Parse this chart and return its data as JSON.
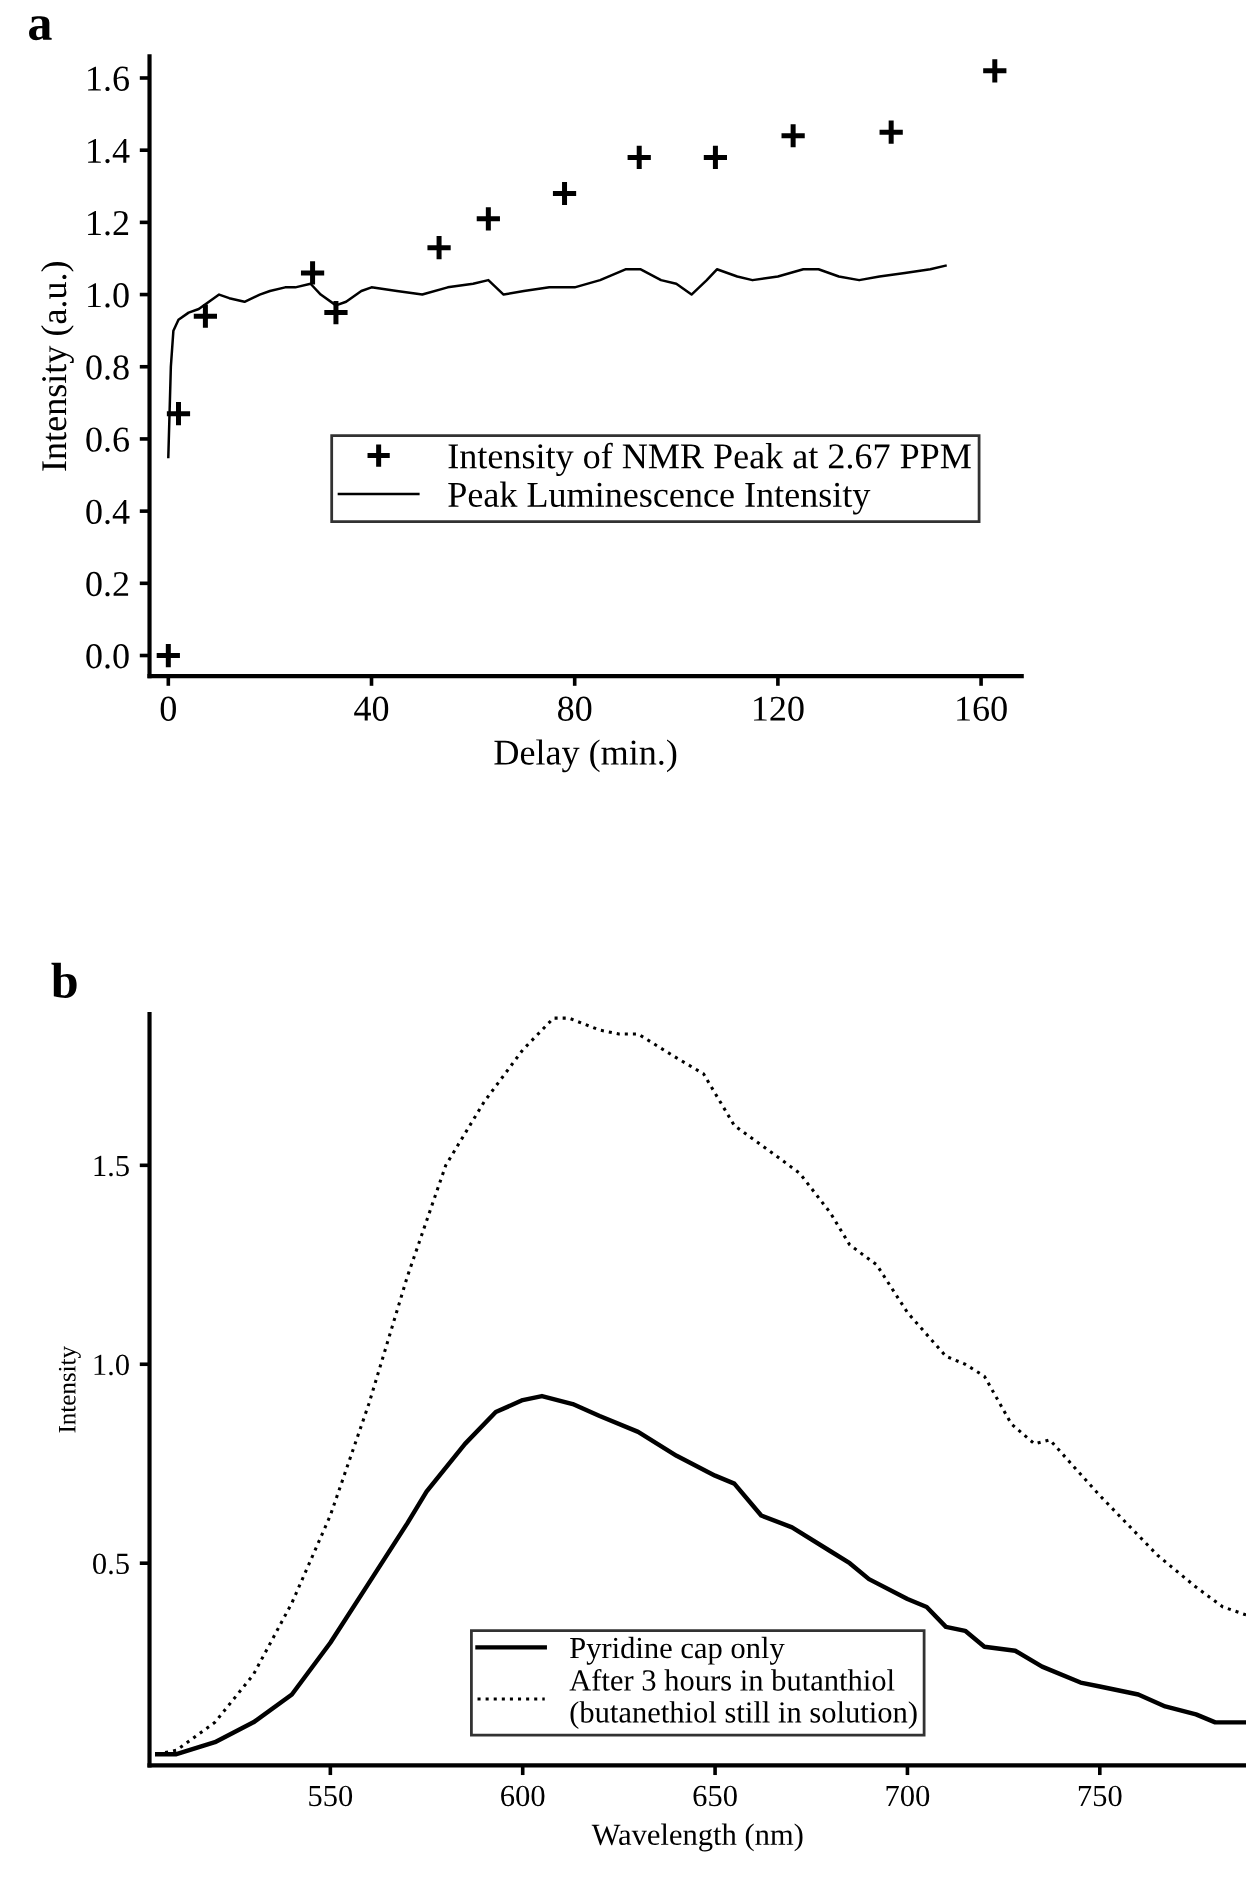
{
  "chart_data": [
    {
      "type": "scatter",
      "title": "a",
      "xlabel": "Delay (min.)",
      "ylabel": "Intensity (a.u.)",
      "xlim": [
        -3.7,
        168
      ],
      "ylim": [
        -0.057,
        1.66
      ],
      "xticks": [
        0,
        40,
        80,
        120,
        160
      ],
      "yticks": [
        {
          "value": 0,
          "label": "0.0"
        },
        {
          "value": 0.2,
          "label": "0.2"
        },
        {
          "value": 0.4,
          "label": "0.4"
        },
        {
          "value": 0.6,
          "label": "0.6"
        },
        {
          "value": 0.8,
          "label": "0.8"
        },
        {
          "value": 1.0,
          "label": "1.0"
        },
        {
          "value": 1.2,
          "label": "1.2"
        },
        {
          "value": 1.4,
          "label": "1.4"
        },
        {
          "value": 1.6,
          "label": "1.6"
        }
      ],
      "legend": "bottom",
      "grid": false,
      "series": [
        {
          "name": "Intensity of NMR Peak at 2.67 PPM",
          "type": "scatter",
          "marker": "cross",
          "color": "#000000",
          "x": [
            0,
            2,
            7.3,
            28.4,
            33,
            53.3,
            63,
            78,
            92.7,
            107.7,
            123,
            142.3,
            162.7
          ],
          "values": [
            0,
            0.67,
            0.94,
            1.06,
            0.95,
            1.13,
            1.21,
            1.28,
            1.38,
            1.38,
            1.44,
            1.45,
            1.62
          ]
        },
        {
          "name": "Peak Luminescence Intensity",
          "type": "line",
          "line_style": "solid",
          "color": "#000000",
          "x": [
            0,
            0.5,
            1,
            2,
            4,
            6,
            8,
            10,
            12,
            15,
            18,
            20,
            23,
            25,
            28,
            30,
            33,
            35,
            38,
            40,
            45,
            50,
            55,
            60,
            63,
            66,
            70,
            75,
            80,
            85,
            90,
            93,
            97,
            100,
            103,
            106,
            108,
            112,
            115,
            120,
            125,
            128,
            132,
            136,
            140,
            145,
            150,
            153
          ],
          "values": [
            0.55,
            0.8,
            0.9,
            0.93,
            0.95,
            0.96,
            0.98,
            1.0,
            0.99,
            0.98,
            1.0,
            1.01,
            1.02,
            1.02,
            1.03,
            1.0,
            0.97,
            0.98,
            1.01,
            1.02,
            1.01,
            1.0,
            1.02,
            1.03,
            1.04,
            1.0,
            1.01,
            1.02,
            1.02,
            1.04,
            1.07,
            1.07,
            1.04,
            1.03,
            1.0,
            1.04,
            1.07,
            1.05,
            1.04,
            1.05,
            1.07,
            1.07,
            1.05,
            1.04,
            1.05,
            1.06,
            1.07,
            1.08
          ]
        }
      ]
    },
    {
      "type": "line",
      "title": "b",
      "xlabel": "Wavelength (nm)",
      "ylabel": "Intensity",
      "xlim": [
        503,
        788
      ],
      "ylim": [
        -0.008,
        1.88
      ],
      "xticks": [
        550,
        600,
        650,
        700,
        750
      ],
      "yticks": [
        {
          "value": 0.5,
          "label": "0.5"
        },
        {
          "value": 1.0,
          "label": "1.0"
        },
        {
          "value": 1.5,
          "label": "1.5"
        }
      ],
      "legend": "bottom",
      "grid": false,
      "series": [
        {
          "name": "Pyridine cap only",
          "line_style": "solid",
          "color": "#000000",
          "x": [
            505,
            510,
            520,
            530,
            540,
            550,
            560,
            570,
            575,
            585,
            593,
            600,
            605,
            613,
            620,
            630,
            640,
            650,
            655,
            662,
            670,
            680,
            685,
            690,
            700,
            705,
            710,
            715,
            720,
            728,
            735,
            745,
            750,
            760,
            767,
            775,
            780,
            788
          ],
          "values": [
            0.02,
            0.02,
            0.05,
            0.1,
            0.17,
            0.3,
            0.45,
            0.6,
            0.68,
            0.8,
            0.88,
            0.91,
            0.92,
            0.9,
            0.87,
            0.83,
            0.77,
            0.72,
            0.7,
            0.62,
            0.59,
            0.53,
            0.5,
            0.46,
            0.41,
            0.39,
            0.34,
            0.33,
            0.29,
            0.28,
            0.24,
            0.2,
            0.19,
            0.17,
            0.14,
            0.12,
            0.1,
            0.1
          ]
        },
        {
          "name": "After 3 hours in butanthiol\n(butanethiol still in solution)",
          "line_style": "dotted",
          "color": "#000000",
          "x": [
            505,
            510,
            520,
            530,
            540,
            550,
            560,
            570,
            580,
            590,
            600,
            608,
            612,
            620,
            625,
            630,
            640,
            647,
            655,
            665,
            672,
            680,
            685,
            692,
            700,
            710,
            715,
            720,
            727,
            733,
            737,
            750,
            755,
            765,
            775,
            782,
            788
          ],
          "values": [
            0.02,
            0.03,
            0.1,
            0.22,
            0.4,
            0.62,
            0.9,
            1.22,
            1.5,
            1.66,
            1.79,
            1.87,
            1.87,
            1.84,
            1.83,
            1.83,
            1.77,
            1.73,
            1.6,
            1.53,
            1.48,
            1.38,
            1.3,
            1.25,
            1.13,
            1.02,
            1.0,
            0.97,
            0.85,
            0.8,
            0.81,
            0.67,
            0.62,
            0.52,
            0.44,
            0.39,
            0.37
          ]
        }
      ]
    }
  ]
}
